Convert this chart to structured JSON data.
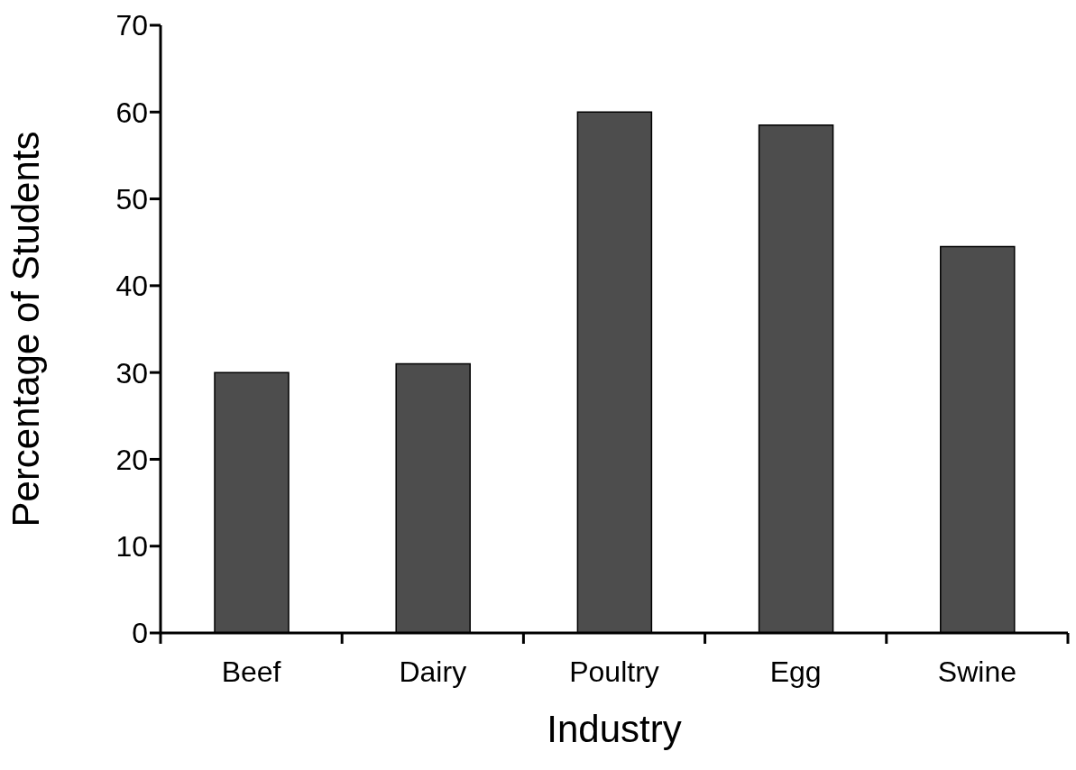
{
  "chart_data": {
    "type": "bar",
    "xlabel": "Industry",
    "ylabel": "Percentage of Students",
    "categories": [
      "Beef",
      "Dairy",
      "Poultry",
      "Egg",
      "Swine"
    ],
    "values": [
      30,
      31,
      60,
      58.5,
      44.5
    ],
    "color": "#4d4d4d",
    "ylim": [
      0,
      70
    ],
    "yticks": [
      0,
      10,
      20,
      30,
      40,
      50,
      60,
      70
    ],
    "grid": false
  }
}
